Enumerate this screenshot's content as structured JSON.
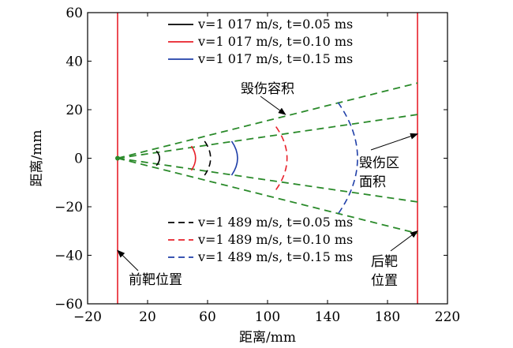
{
  "chart_data": {
    "type": "line",
    "xlabel": "距离/mm",
    "ylabel": "距离/mm",
    "xlim": [
      -20,
      220
    ],
    "ylim": [
      -60,
      60
    ],
    "xticks": [
      -20,
      20,
      60,
      100,
      140,
      180,
      220
    ],
    "yticks": [
      -60,
      -40,
      -20,
      0,
      20,
      40,
      60
    ],
    "grid": false,
    "vertical_lines": [
      {
        "x": 0,
        "color": "#e8202a",
        "label": "前靶位置"
      },
      {
        "x": 200,
        "color": "#e8202a",
        "label": "后靶位置"
      }
    ],
    "cone_lines": {
      "color": "#2a8a2a",
      "style": "dashed",
      "apex": [
        0,
        0
      ],
      "lines": [
        {
          "end": [
            200,
            31
          ]
        },
        {
          "end": [
            200,
            18
          ]
        },
        {
          "end": [
            200,
            -18
          ]
        },
        {
          "end": [
            200,
            -31
          ]
        }
      ]
    },
    "legend_top": [
      {
        "label": "v=1 017 m/s, t=0.05 ms",
        "color": "#000000",
        "style": "solid"
      },
      {
        "label": "v=1 017 m/s, t=0.10 ms",
        "color": "#e8202a",
        "style": "solid"
      },
      {
        "label": "v=1 017 m/s, t=0.15 ms",
        "color": "#1f3fa8",
        "style": "solid"
      }
    ],
    "legend_bottom": [
      {
        "label": "v=1 489 m/s, t=0.05 ms",
        "color": "#000000",
        "style": "dashed"
      },
      {
        "label": "v=1 489 m/s, t=0.10 ms",
        "color": "#e8202a",
        "style": "dashed"
      },
      {
        "label": "v=1 489 m/s, t=0.15 ms",
        "color": "#1f3fa8",
        "style": "dashed"
      }
    ],
    "fronts": [
      {
        "group": "v1017",
        "t": 0.05,
        "x_center": 28,
        "y_half": 3,
        "color": "#000000",
        "style": "solid"
      },
      {
        "group": "v1017",
        "t": 0.1,
        "x_center": 52,
        "y_half": 5,
        "color": "#e8202a",
        "style": "solid"
      },
      {
        "group": "v1017",
        "t": 0.15,
        "x_center": 80,
        "y_half": 7,
        "color": "#1f3fa8",
        "style": "solid"
      },
      {
        "group": "v1489",
        "t": 0.05,
        "x_center": 62,
        "y_half": 7,
        "color": "#000000",
        "style": "dashed"
      },
      {
        "group": "v1489",
        "t": 0.1,
        "x_center": 113,
        "y_half": 13,
        "color": "#e8202a",
        "style": "dashed"
      },
      {
        "group": "v1489",
        "t": 0.15,
        "x_center": 160,
        "y_half": 23,
        "color": "#1f3fa8",
        "style": "dashed"
      }
    ],
    "annotations": [
      {
        "text": "毁伤容积",
        "arrow_to": [
          112,
          18
        ]
      },
      {
        "text": "毁伤区",
        "text2": "面积",
        "arrow_to": [
          200,
          10
        ]
      },
      {
        "text": "前靶位置",
        "arrow_to": [
          0,
          -38
        ]
      },
      {
        "text": "后靶",
        "text2": "位置",
        "arrow_to": [
          200,
          -30
        ]
      }
    ]
  }
}
